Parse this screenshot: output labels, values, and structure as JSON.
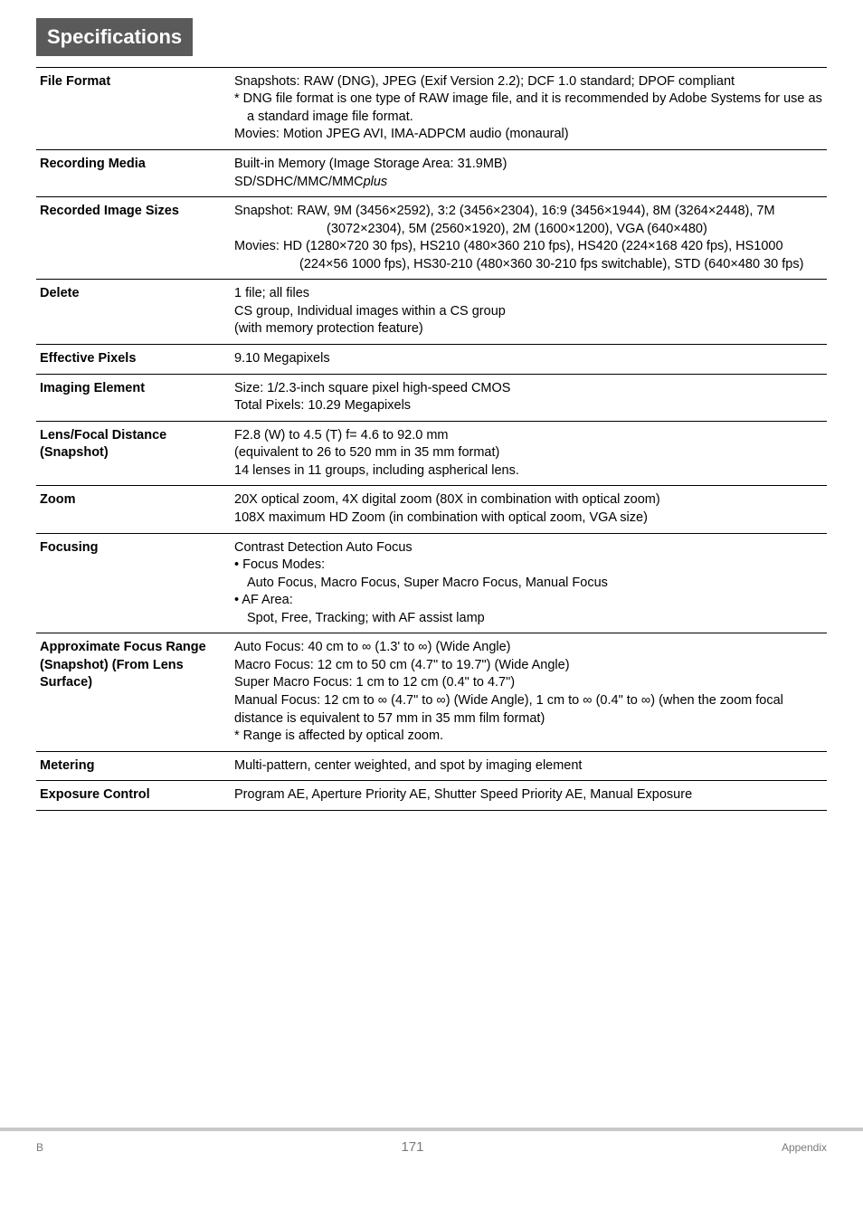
{
  "header": {
    "title": "Specifications"
  },
  "rows": [
    {
      "label": "File Format",
      "lines": [
        {
          "text": "Snapshots: RAW (DNG), JPEG (Exif Version 2.2); DCF 1.0 standard; DPOF compliant",
          "cls": "hanging-sn"
        },
        {
          "text": "* DNG file format is one type of RAW image file, and it is recommended by Adobe Systems for use as a standard image file format.",
          "cls": "hanging-star"
        },
        {
          "text": "Movies: Motion JPEG AVI, IMA-ADPCM audio (monaural)"
        }
      ]
    },
    {
      "label": "Recording Media",
      "lines": [
        {
          "text": "Built-in Memory (Image Storage Area: 31.9MB)"
        },
        {
          "html": "SD/SDHC/MMC/MMC<span class=\"italic\">plus</span>"
        }
      ]
    },
    {
      "label": "Recorded Image Sizes",
      "lines": [
        {
          "text": "Snapshot: RAW, 9M (3456×2592), 3:2 (3456×2304), 16:9 (3456×1944), 8M (3264×2448), 7M (3072×2304), 5M (2560×1920), 2M (1600×1200), VGA (640×480)",
          "cls": "hanging-sn"
        },
        {
          "text": "Movies: HD (1280×720 30 fps), HS210 (480×360 210 fps), HS420 (224×168 420 fps), HS1000 (224×56 1000 fps), HS30-210 (480×360 30-210 fps switchable), STD (640×480 30 fps)",
          "cls": "hanging"
        }
      ]
    },
    {
      "label": "Delete",
      "lines": [
        {
          "text": "1 file; all files"
        },
        {
          "text": "CS group, Individual images within a CS group"
        },
        {
          "text": "(with memory protection feature)"
        }
      ]
    },
    {
      "label": "Effective Pixels",
      "lines": [
        {
          "text": "9.10 Megapixels"
        }
      ]
    },
    {
      "label": "Imaging Element",
      "lines": [
        {
          "text": "Size: 1/2.3-inch square pixel high-speed CMOS"
        },
        {
          "text": "Total Pixels: 10.29 Megapixels"
        }
      ]
    },
    {
      "label": "Lens/Focal Distance (Snapshot)",
      "lines": [
        {
          "text": "F2.8 (W) to 4.5 (T) f= 4.6 to 92.0 mm"
        },
        {
          "text": "(equivalent to 26 to 520 mm in 35 mm format)"
        },
        {
          "text": "14 lenses in 11 groups, including aspherical lens."
        }
      ]
    },
    {
      "label": "Zoom",
      "lines": [
        {
          "text": "20X optical zoom, 4X digital zoom (80X in combination with optical zoom)"
        },
        {
          "text": "108X maximum HD Zoom (in combination with optical zoom, VGA size)"
        }
      ]
    },
    {
      "label": "Focusing",
      "lines": [
        {
          "text": "Contrast Detection Auto Focus"
        },
        {
          "text": "• Focus Modes:"
        },
        {
          "text": "Auto Focus, Macro Focus, Super Macro Focus, Manual Focus",
          "cls": "indent"
        },
        {
          "text": "• AF Area:"
        },
        {
          "text": "Spot, Free, Tracking; with AF assist lamp",
          "cls": "indent"
        }
      ]
    },
    {
      "label": "Approximate Focus Range (Snapshot) (From Lens Surface)",
      "lines": [
        {
          "text": "Auto Focus: 40 cm to ∞ (1.3' to ∞) (Wide Angle)"
        },
        {
          "text": "Macro Focus: 12 cm to 50 cm (4.7\" to 19.7\") (Wide Angle)"
        },
        {
          "text": "Super Macro Focus: 1 cm to 12 cm (0.4\" to 4.7\")"
        },
        {
          "text": "Manual Focus: 12 cm to ∞ (4.7\" to ∞) (Wide Angle), 1 cm to ∞ (0.4\" to ∞) (when the zoom focal distance is equivalent to 57 mm in 35 mm film format)"
        },
        {
          "text": "* Range is affected by optical zoom."
        }
      ]
    },
    {
      "label": "Metering",
      "lines": [
        {
          "text": "Multi-pattern, center weighted, and spot by imaging element"
        }
      ]
    },
    {
      "label": "Exposure Control",
      "lines": [
        {
          "text": "Program AE, Aperture Priority AE, Shutter Speed Priority AE, Manual Exposure"
        }
      ]
    }
  ],
  "footer": {
    "left": "B",
    "page": "171",
    "right": "Appendix"
  }
}
